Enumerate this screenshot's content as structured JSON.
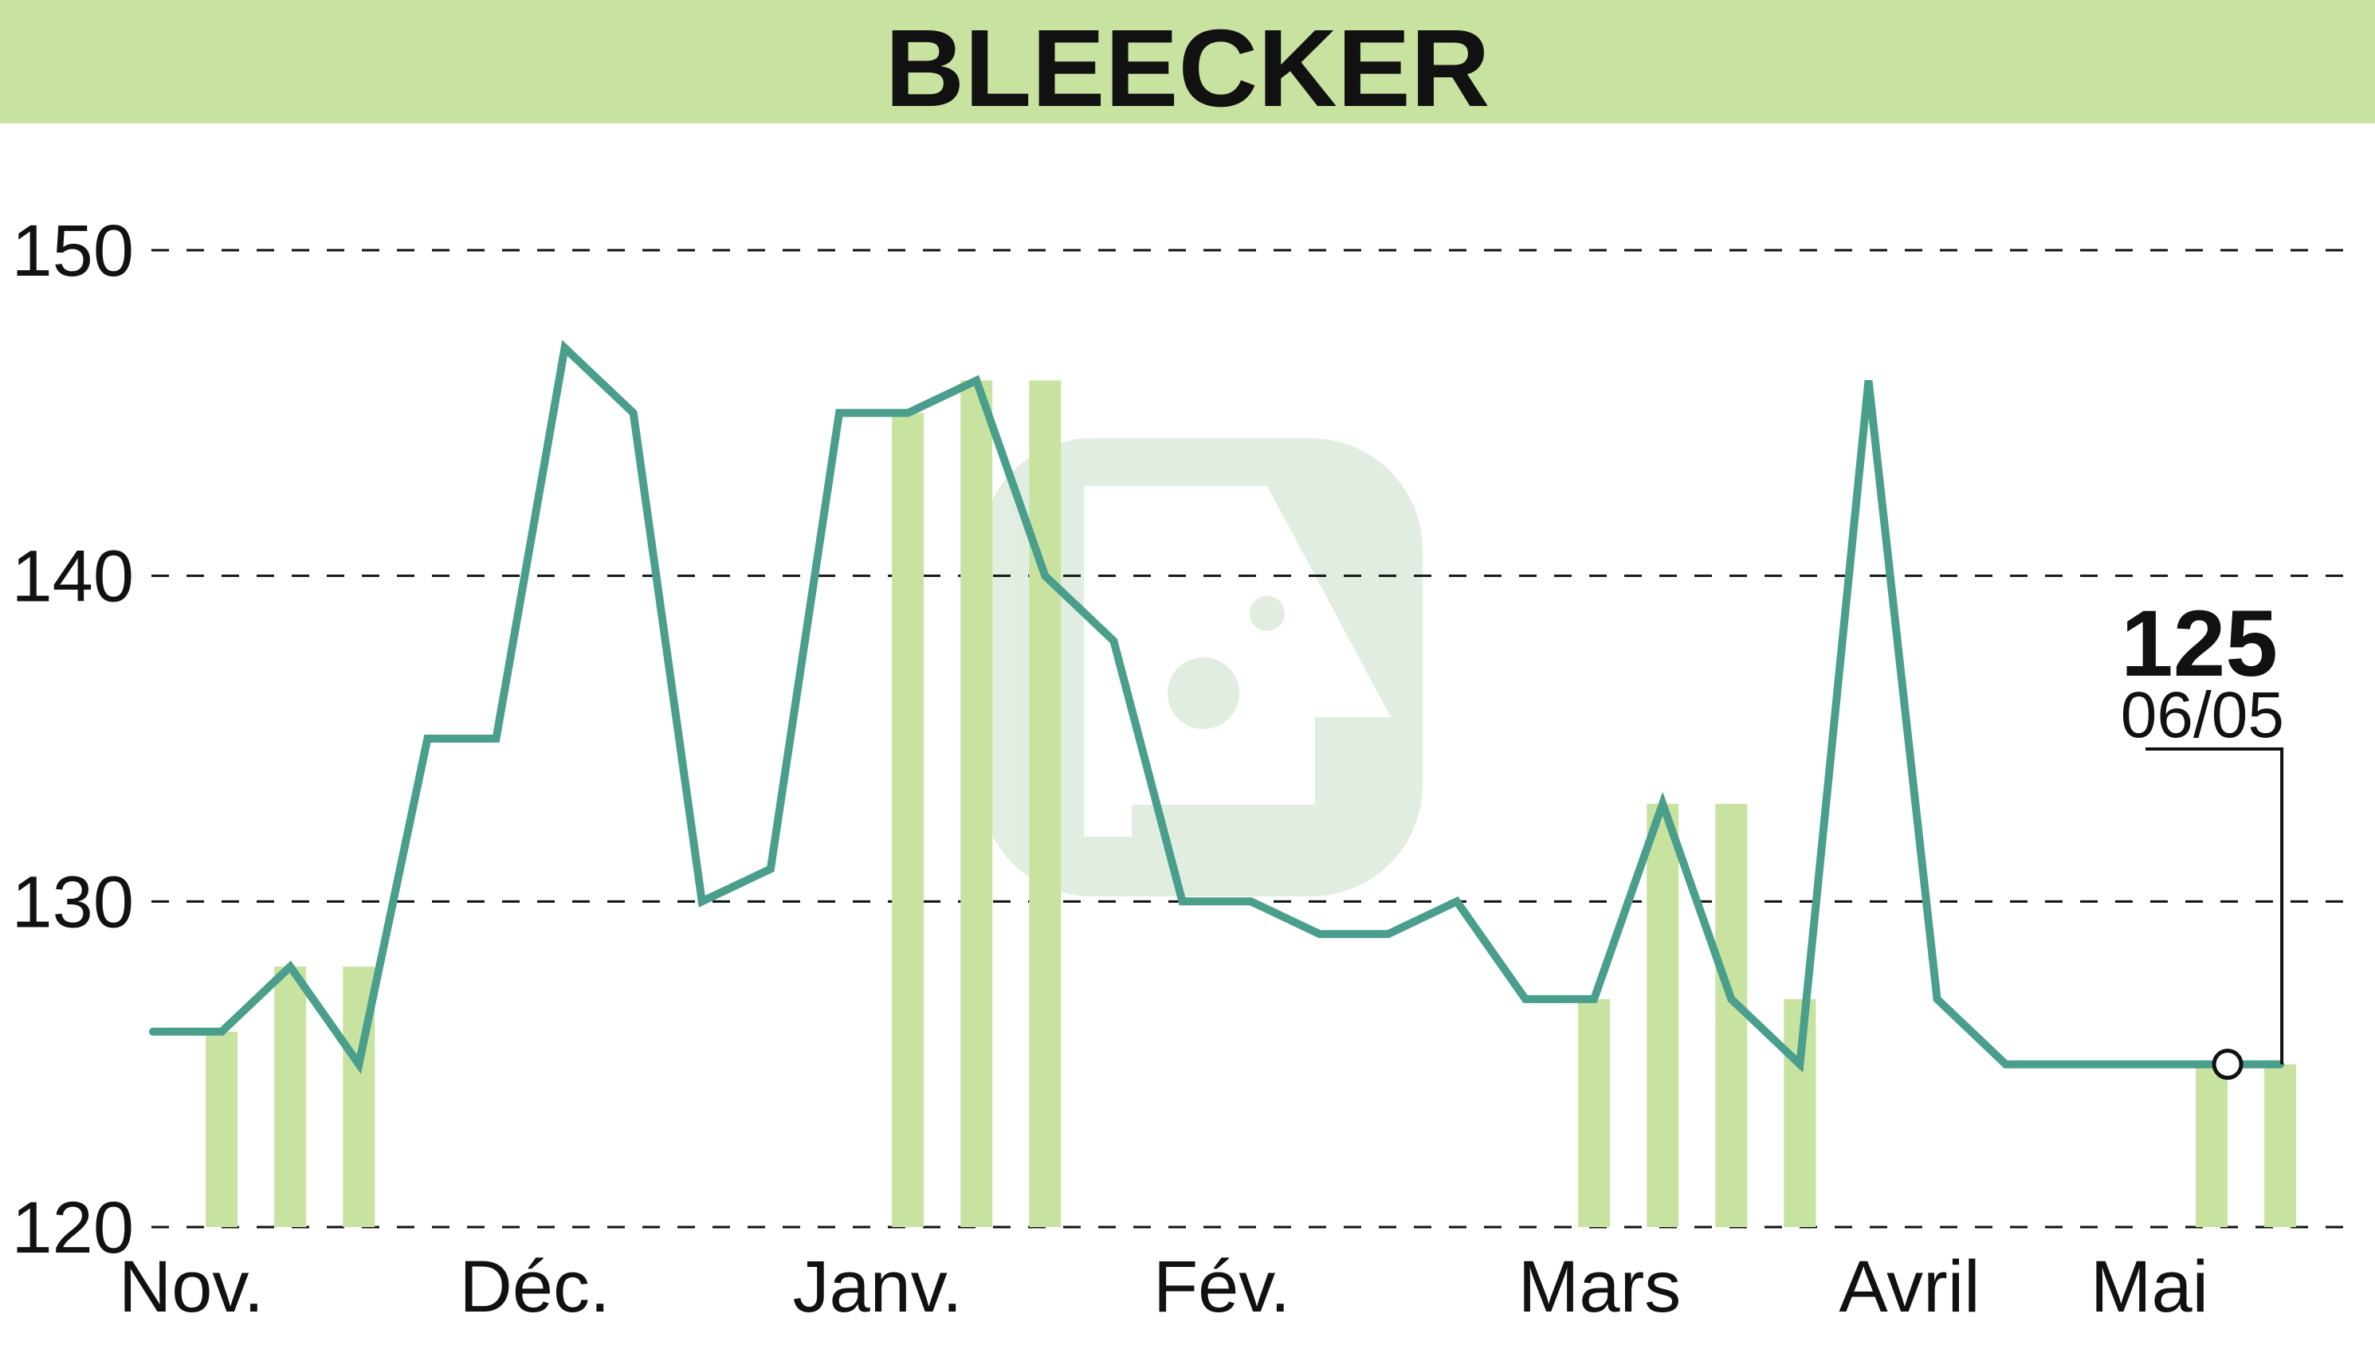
{
  "title": "BLEECKER",
  "colors": {
    "title_bar": "#c8e3a0",
    "price_line": "#4a9e8c",
    "volume_bars": "#c8e3a0"
  },
  "chart_data": {
    "type": "line",
    "title": "BLEECKER",
    "xlabel": "",
    "ylabel": "",
    "ylim": [
      120,
      150
    ],
    "yticks": [
      120,
      130,
      140,
      150
    ],
    "grid": true,
    "x_month_labels": [
      "Nov.",
      "Déc.",
      "Janv.",
      "Fév.",
      "Mars",
      "Avril",
      "Mai"
    ],
    "series": [
      {
        "values": [
          126,
          126,
          128,
          125,
          135,
          135,
          147,
          145,
          130,
          131,
          145,
          145,
          146,
          140,
          138,
          130,
          130,
          129,
          129,
          130,
          127,
          127,
          133,
          127,
          125,
          146,
          127,
          125,
          125,
          125,
          125,
          125
        ]
      }
    ],
    "volume_bars_index_range": [
      [
        1,
        126
      ],
      [
        2,
        128
      ],
      [
        3,
        128
      ],
      [
        11,
        145
      ],
      [
        12,
        146
      ],
      [
        13,
        146
      ],
      [
        21,
        127
      ],
      [
        22,
        133
      ],
      [
        23,
        133
      ],
      [
        24,
        127
      ],
      [
        30,
        125
      ],
      [
        31,
        125
      ]
    ],
    "last_value": "125",
    "last_date": "06/05"
  }
}
